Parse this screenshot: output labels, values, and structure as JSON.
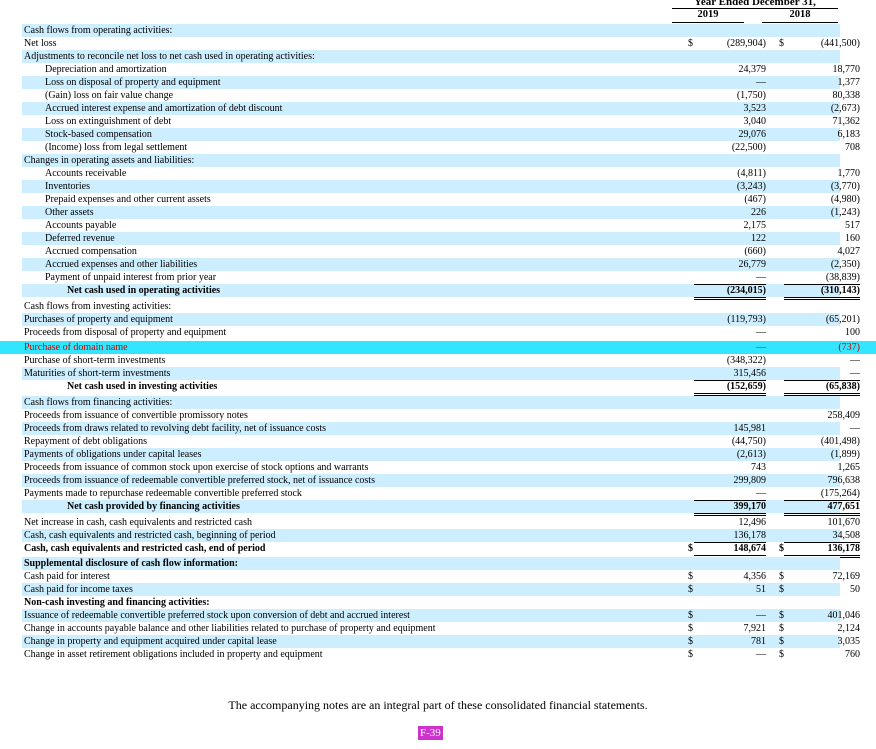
{
  "header": {
    "period": "Year Ended December 31,",
    "col1": "2019",
    "col2": "2018"
  },
  "rows": [
    {
      "label": "Cash flows from operating activities:",
      "indent": 0,
      "bold": false,
      "v1": "",
      "v2": ""
    },
    {
      "label": "Net loss",
      "indent": 0,
      "bold": false,
      "v1": "(289,904)",
      "v2": "(441,500)",
      "cur1": "$",
      "cur2": "$"
    },
    {
      "label": "Adjustments to reconcile net loss to net cash used in operating activities:",
      "indent": 0,
      "bold": false,
      "v1": "",
      "v2": ""
    },
    {
      "label": "Depreciation and amortization",
      "indent": 1,
      "bold": false,
      "v1": "24,379",
      "v2": "18,770"
    },
    {
      "label": "Loss on disposal of property and equipment",
      "indent": 1,
      "bold": false,
      "v1": "—",
      "v2": "1,377"
    },
    {
      "label": "(Gain) loss on fair value change",
      "indent": 1,
      "bold": false,
      "v1": "(1,750)",
      "v2": "80,338"
    },
    {
      "label": "Accrued interest expense and amortization of debt discount",
      "indent": 1,
      "bold": false,
      "v1": "3,523",
      "v2": "(2,673)"
    },
    {
      "label": "Loss on extinguishment of debt",
      "indent": 1,
      "bold": false,
      "v1": "3,040",
      "v2": "71,362"
    },
    {
      "label": "Stock-based compensation",
      "indent": 1,
      "bold": false,
      "v1": "29,076",
      "v2": "6,183"
    },
    {
      "label": "(Income) loss from legal settlement",
      "indent": 1,
      "bold": false,
      "v1": "(22,500)",
      "v2": "708"
    },
    {
      "label": "Changes in operating assets and liabilities:",
      "indent": 0,
      "bold": false,
      "v1": "",
      "v2": ""
    },
    {
      "label": "Accounts receivable",
      "indent": 1,
      "bold": false,
      "v1": "(4,811)",
      "v2": "1,770"
    },
    {
      "label": "Inventories",
      "indent": 1,
      "bold": false,
      "v1": "(3,243)",
      "v2": "(3,770)"
    },
    {
      "label": "Prepaid expenses and other current assets",
      "indent": 1,
      "bold": false,
      "v1": "(467)",
      "v2": "(4,980)"
    },
    {
      "label": "Other assets",
      "indent": 1,
      "bold": false,
      "v1": "226",
      "v2": "(1,243)"
    },
    {
      "label": "Accounts payable",
      "indent": 1,
      "bold": false,
      "v1": "2,175",
      "v2": "517"
    },
    {
      "label": "Deferred revenue",
      "indent": 1,
      "bold": false,
      "v1": "122",
      "v2": "160"
    },
    {
      "label": "Accrued compensation",
      "indent": 1,
      "bold": false,
      "v1": "(660)",
      "v2": "4,027"
    },
    {
      "label": "Accrued expenses and other liabilities",
      "indent": 1,
      "bold": false,
      "v1": "26,779",
      "v2": "(2,350)"
    },
    {
      "label": "Payment of unpaid interest from prior year",
      "indent": 1,
      "bold": false,
      "v1": "—",
      "v2": "(38,839)"
    },
    {
      "label": "Net cash used in operating activities",
      "indent": 2,
      "bold": true,
      "v1": "(234,015)",
      "v2": "(310,143)",
      "total": true
    },
    {
      "label": "Cash flows from investing activities:",
      "indent": 0,
      "bold": false,
      "v1": "",
      "v2": ""
    },
    {
      "label": "Purchases of property and equipment",
      "indent": 0,
      "bold": false,
      "v1": "(119,793)",
      "v2": "(65,201)"
    },
    {
      "label": "Proceeds from disposal of property and equipment",
      "indent": 0,
      "bold": false,
      "v1": "—",
      "v2": "100"
    },
    {
      "label": "Purchase of domain name",
      "indent": 0,
      "bold": false,
      "v1": "—",
      "v2": "(737)",
      "highlight": true
    },
    {
      "label": "Purchase of short-term investments",
      "indent": 0,
      "bold": false,
      "v1": "(348,322)",
      "v2": "—"
    },
    {
      "label": "Maturities of short-term investments",
      "indent": 0,
      "bold": false,
      "v1": "315,456",
      "v2": "—"
    },
    {
      "label": "Net cash used in investing activities",
      "indent": 2,
      "bold": true,
      "v1": "(152,659)",
      "v2": "(65,838)",
      "total": true
    },
    {
      "label": "Cash flows from financing activities:",
      "indent": 0,
      "bold": false,
      "v1": "",
      "v2": ""
    },
    {
      "label": "Proceeds from issuance of convertible promissory notes",
      "indent": 0,
      "bold": false,
      "v1": "",
      "v2": "258,409"
    },
    {
      "label": "Proceeds from draws related to revolving debt facility, net of issuance costs",
      "indent": 0,
      "bold": false,
      "v1": "145,981",
      "v2": "—"
    },
    {
      "label": "Repayment of debt obligations",
      "indent": 0,
      "bold": false,
      "v1": "(44,750)",
      "v2": "(401,498)"
    },
    {
      "label": "Payments of obligations under capital leases",
      "indent": 0,
      "bold": false,
      "v1": "(2,613)",
      "v2": "(1,899)"
    },
    {
      "label": "Proceeds from issuance of common stock upon exercise of stock options and warrants",
      "indent": 0,
      "bold": false,
      "v1": "743",
      "v2": "1,265"
    },
    {
      "label": "Proceeds from issuance of redeemable convertible preferred stock, net of issuance costs",
      "indent": 0,
      "bold": false,
      "v1": "299,809",
      "v2": "796,638"
    },
    {
      "label": "Payments made to repurchase redeemable convertible preferred stock",
      "indent": 0,
      "bold": false,
      "v1": "—",
      "v2": "(175,264)"
    },
    {
      "label": "Net cash provided by financing activities",
      "indent": 2,
      "bold": true,
      "v1": "399,170",
      "v2": "477,651",
      "total": true
    },
    {
      "label": "Net increase in cash, cash equivalents and restricted cash",
      "indent": 0,
      "bold": false,
      "v1": "12,496",
      "v2": "101,670"
    },
    {
      "label": "Cash, cash equivalents and restricted cash, beginning of period",
      "indent": 0,
      "bold": false,
      "v1": "136,178",
      "v2": "34,508"
    },
    {
      "label": "Cash, cash equivalents and restricted cash, end of period",
      "indent": 0,
      "bold": true,
      "v1": "148,674",
      "v2": "136,178",
      "cur1": "$",
      "cur2": "$",
      "grand": true
    },
    {
      "label": "Supplemental disclosure of cash flow information:",
      "indent": 0,
      "bold": true,
      "v1": "",
      "v2": ""
    },
    {
      "label": "Cash paid for interest",
      "indent": 0,
      "bold": false,
      "v1": "4,356",
      "v2": "72,169",
      "cur1": "$",
      "cur2": "$"
    },
    {
      "label": "Cash paid for income taxes",
      "indent": 0,
      "bold": false,
      "v1": "51",
      "v2": "50",
      "cur1": "$",
      "cur2": "$"
    },
    {
      "label": "Non-cash investing and financing activities:",
      "indent": 0,
      "bold": true,
      "v1": "",
      "v2": ""
    },
    {
      "label": "Issuance of redeemable convertible preferred stock upon conversion of debt and accrued interest",
      "indent": 0,
      "bold": false,
      "v1": "—",
      "v2": "401,046",
      "cur1": "$",
      "cur2": "$"
    },
    {
      "label": "Change in accounts payable balance and other liabilities related to purchase of property and equipment",
      "indent": 0,
      "bold": false,
      "v1": "7,921",
      "v2": "2,124",
      "cur1": "$",
      "cur2": "$"
    },
    {
      "label": "Change in property and equipment acquired under capital lease",
      "indent": 0,
      "bold": false,
      "v1": "781",
      "v2": "3,035",
      "cur1": "$",
      "cur2": "$"
    },
    {
      "label": "Change in asset retirement obligations included in property and equipment",
      "indent": 0,
      "bold": false,
      "v1": "—",
      "v2": "760",
      "cur1": "$",
      "cur2": "$"
    }
  ],
  "footer": {
    "note": "The accompanying notes are an integral part of these consolidated financial statements.",
    "page": "F-39"
  },
  "colors": {
    "row_shade": "#cceeff",
    "highlight_row": "#33e6ff",
    "highlight_text": "#cc0000",
    "page_badge": "#cc33cc"
  }
}
